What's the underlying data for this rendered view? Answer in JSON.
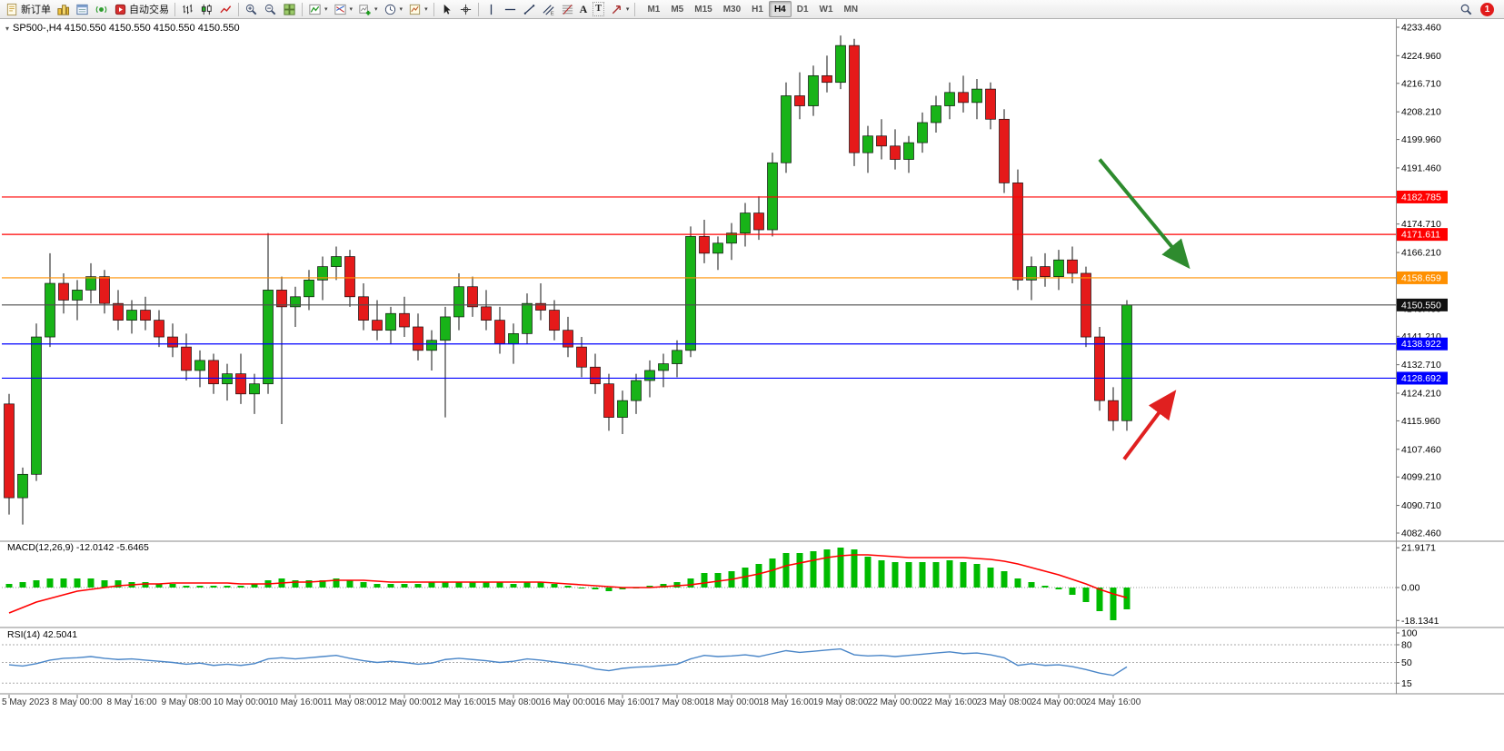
{
  "toolbar": {
    "new_order": "新订单",
    "auto_trading": "自动交易",
    "text_tool": "A",
    "label_tool": "T",
    "timeframes": [
      "M1",
      "M5",
      "M15",
      "M30",
      "H1",
      "H4",
      "D1",
      "W1",
      "MN"
    ],
    "active_timeframe": "H4",
    "notification_badge": "1",
    "icons": [
      "new-order-icon",
      "market-watch-icon",
      "data-window-icon",
      "navigator-icon",
      "auto-trading-icon",
      "bar-chart-icon",
      "candlestick-chart-icon",
      "line-chart-icon",
      "zoom-in-icon",
      "zoom-out-icon",
      "tile-windows-icon",
      "indicators-icon",
      "objects-list-icon",
      "new-chart-icon",
      "period-menu-icon",
      "template-icon",
      "cursor-icon",
      "crosshair-icon",
      "vertical-line-icon",
      "horizontal-line-icon",
      "trendline-icon",
      "channel-icon",
      "fibonacci-icon",
      "text-icon",
      "text-label-icon",
      "arrow-tools-icon",
      "search-icon",
      "notification-icon"
    ]
  },
  "chart": {
    "title": "SP500-,H4 4150.550 4150.550 4150.550 4150.550",
    "symbol": "SP500-",
    "period": "H4",
    "macd_label": "MACD(12,26,9) -12.0142 -5.6465",
    "rsi_label": "RSI(14) 42.5041"
  },
  "chart_data": {
    "type": "candlestick",
    "symbol": "SP500-",
    "timeframe": "H4",
    "price_range": [
      4082.46,
      4233.46
    ],
    "price_ticks": [
      "4233.460",
      "4224.960",
      "4216.710",
      "4208.210",
      "4199.960",
      "4191.460",
      "4174.710",
      "4166.210",
      "4157.960",
      "4149.460",
      "4141.210",
      "4132.710",
      "4124.210",
      "4115.960",
      "4107.460",
      "4099.210",
      "4090.710",
      "4082.460"
    ],
    "hlines": [
      {
        "price": 4182.785,
        "label": "4182.785",
        "color": "#ff0000"
      },
      {
        "price": 4171.611,
        "label": "4171.611",
        "color": "#ff0000"
      },
      {
        "price": 4158.659,
        "label": "4158.659",
        "color": "#ff9000"
      },
      {
        "price": 4150.55,
        "label": "4150.550",
        "color": "#4d4d4d",
        "badge": "#101010"
      },
      {
        "price": 4138.922,
        "label": "4138.922",
        "color": "#0000ff"
      },
      {
        "price": 4128.692,
        "label": "4128.692",
        "color": "#0000ff"
      }
    ],
    "candles": [
      [
        4121,
        4124,
        4088,
        4093
      ],
      [
        4093,
        4102,
        4085,
        4100
      ],
      [
        4100,
        4145,
        4098,
        4141
      ],
      [
        4141,
        4166,
        4138,
        4157
      ],
      [
        4157,
        4160,
        4148,
        4152
      ],
      [
        4152,
        4158,
        4146,
        4155
      ],
      [
        4155,
        4163,
        4151,
        4159
      ],
      [
        4159,
        4161,
        4148,
        4151
      ],
      [
        4151,
        4155,
        4143,
        4146
      ],
      [
        4146,
        4152,
        4142,
        4149
      ],
      [
        4149,
        4153,
        4143,
        4146
      ],
      [
        4146,
        4149,
        4138,
        4141
      ],
      [
        4141,
        4145,
        4135,
        4138
      ],
      [
        4138,
        4142,
        4128,
        4131
      ],
      [
        4131,
        4137,
        4126,
        4134
      ],
      [
        4134,
        4136,
        4124,
        4127
      ],
      [
        4127,
        4133,
        4122,
        4130
      ],
      [
        4130,
        4136,
        4121,
        4124
      ],
      [
        4124,
        4130,
        4118,
        4127
      ],
      [
        4127,
        4172,
        4124,
        4155
      ],
      [
        4155,
        4159,
        4115,
        4150
      ],
      [
        4150,
        4156,
        4144,
        4153
      ],
      [
        4153,
        4161,
        4149,
        4158
      ],
      [
        4158,
        4165,
        4152,
        4162
      ],
      [
        4162,
        4168,
        4158,
        4165
      ],
      [
        4165,
        4167,
        4150,
        4153
      ],
      [
        4153,
        4157,
        4143,
        4146
      ],
      [
        4146,
        4152,
        4140,
        4143
      ],
      [
        4143,
        4150,
        4139,
        4148
      ],
      [
        4148,
        4153,
        4141,
        4144
      ],
      [
        4144,
        4148,
        4134,
        4137
      ],
      [
        4137,
        4143,
        4131,
        4140
      ],
      [
        4140,
        4150,
        4117,
        4147
      ],
      [
        4147,
        4160,
        4143,
        4156
      ],
      [
        4156,
        4159,
        4147,
        4150
      ],
      [
        4150,
        4155,
        4143,
        4146
      ],
      [
        4146,
        4150,
        4136,
        4139
      ],
      [
        4139,
        4145,
        4133,
        4142
      ],
      [
        4142,
        4154,
        4139,
        4151
      ],
      [
        4151,
        4157,
        4146,
        4149
      ],
      [
        4149,
        4152,
        4140,
        4143
      ],
      [
        4143,
        4147,
        4135,
        4138
      ],
      [
        4138,
        4141,
        4129,
        4132
      ],
      [
        4132,
        4136,
        4124,
        4127
      ],
      [
        4127,
        4130,
        4113,
        4117
      ],
      [
        4117,
        4125,
        4112,
        4122
      ],
      [
        4122,
        4130,
        4118,
        4128
      ],
      [
        4128,
        4134,
        4123,
        4131
      ],
      [
        4131,
        4136,
        4126,
        4133
      ],
      [
        4133,
        4140,
        4129,
        4137
      ],
      [
        4137,
        4174,
        4135,
        4171
      ],
      [
        4171,
        4176,
        4163,
        4166
      ],
      [
        4166,
        4171,
        4161,
        4169
      ],
      [
        4169,
        4175,
        4164,
        4172
      ],
      [
        4172,
        4181,
        4168,
        4178
      ],
      [
        4178,
        4183,
        4170,
        4173
      ],
      [
        4173,
        4196,
        4171,
        4193
      ],
      [
        4193,
        4217,
        4190,
        4213
      ],
      [
        4213,
        4220,
        4206,
        4210
      ],
      [
        4210,
        4222,
        4207,
        4219
      ],
      [
        4219,
        4225,
        4214,
        4217
      ],
      [
        4217,
        4231,
        4215,
        4228
      ],
      [
        4228,
        4230,
        4192,
        4196
      ],
      [
        4196,
        4204,
        4190,
        4201
      ],
      [
        4201,
        4206,
        4194,
        4198
      ],
      [
        4198,
        4203,
        4191,
        4194
      ],
      [
        4194,
        4201,
        4190,
        4199
      ],
      [
        4199,
        4208,
        4196,
        4205
      ],
      [
        4205,
        4213,
        4202,
        4210
      ],
      [
        4210,
        4217,
        4206,
        4214
      ],
      [
        4214,
        4219,
        4208,
        4211
      ],
      [
        4211,
        4218,
        4206,
        4215
      ],
      [
        4215,
        4217,
        4203,
        4206
      ],
      [
        4206,
        4209,
        4184,
        4187
      ],
      [
        4187,
        4191,
        4155,
        4158
      ],
      [
        4158,
        4165,
        4152,
        4162
      ],
      [
        4162,
        4166,
        4156,
        4159
      ],
      [
        4159,
        4167,
        4155,
        4164
      ],
      [
        4164,
        4168,
        4157,
        4160
      ],
      [
        4160,
        4162,
        4138,
        4141
      ],
      [
        4141,
        4144,
        4119,
        4122
      ],
      [
        4122,
        4126,
        4113,
        4116
      ],
      [
        4116,
        4152,
        4113,
        4150.55
      ]
    ],
    "macd": {
      "histogram": [
        2,
        3,
        4,
        5,
        5,
        5,
        5,
        4,
        4,
        3,
        3,
        2,
        2,
        1,
        1,
        1,
        1,
        1,
        2,
        4,
        5,
        4,
        4,
        4,
        5,
        4,
        3,
        2,
        2,
        2,
        2,
        3,
        3,
        3,
        3,
        3,
        3,
        2,
        3,
        3,
        2,
        1,
        0,
        -1,
        -2,
        -1,
        0,
        1,
        2,
        3,
        5,
        8,
        8,
        9,
        11,
        13,
        16,
        19,
        19,
        20,
        21,
        22,
        21,
        17,
        15,
        14,
        14,
        14,
        14,
        15,
        14,
        13,
        11,
        9,
        5,
        3,
        1,
        -1,
        -4,
        -8,
        -13,
        -18,
        -12
      ],
      "signal": [
        -14,
        -11,
        -8,
        -6,
        -4,
        -2,
        -1,
        0,
        1,
        1.5,
        2,
        2,
        2.5,
        2.5,
        2.5,
        2.5,
        2.5,
        2,
        2,
        2,
        2.5,
        3,
        3,
        3.5,
        4,
        4,
        4,
        3.5,
        3,
        3,
        3,
        3,
        3,
        3,
        3,
        3,
        3,
        3,
        3,
        3,
        2.5,
        2,
        1.5,
        1,
        0.5,
        0,
        0,
        0,
        0.5,
        1,
        1.5,
        2.5,
        3.5,
        4.5,
        6,
        7.5,
        9.5,
        12,
        13.5,
        15,
        16.5,
        17.5,
        18,
        18,
        17.5,
        17,
        16.5,
        16.5,
        16.5,
        16.5,
        16.5,
        16,
        15.5,
        14.5,
        13,
        11,
        9,
        7,
        4.5,
        2,
        -1,
        -3.5,
        -5.6
      ],
      "axis_ticks": [
        "21.9171",
        "0.00",
        "-18.1341"
      ],
      "current_values": [
        "-12.0142",
        "-5.6465"
      ]
    },
    "rsi": {
      "values": [
        46,
        44,
        48,
        54,
        57,
        58,
        60,
        57,
        55,
        56,
        54,
        52,
        50,
        47,
        49,
        45,
        47,
        45,
        48,
        56,
        58,
        56,
        58,
        60,
        62,
        57,
        53,
        50,
        52,
        50,
        47,
        49,
        55,
        57,
        55,
        53,
        50,
        52,
        56,
        54,
        51,
        48,
        45,
        39,
        36,
        40,
        42,
        43,
        45,
        47,
        56,
        62,
        60,
        61,
        63,
        60,
        65,
        70,
        67,
        69,
        71,
        73,
        63,
        61,
        62,
        60,
        62,
        64,
        66,
        68,
        65,
        66,
        63,
        58,
        45,
        48,
        45,
        46,
        43,
        38,
        32,
        28,
        42.5
      ],
      "levels": [
        80,
        50,
        15
      ],
      "axis_ticks": [
        "100",
        "80",
        "50",
        "15"
      ],
      "current_value": "42.5041"
    },
    "time_labels": [
      {
        "label": "5 May 2023",
        "bar": 0
      },
      {
        "label": "8 May 00:00",
        "bar": 5
      },
      {
        "label": "8 May 16:00",
        "bar": 9
      },
      {
        "label": "9 May 08:00",
        "bar": 13
      },
      {
        "label": "10 May 00:00",
        "bar": 17
      },
      {
        "label": "10 May 16:00",
        "bar": 21
      },
      {
        "label": "11 May 08:00",
        "bar": 25
      },
      {
        "label": "12 May 00:00",
        "bar": 29
      },
      {
        "label": "12 May 16:00",
        "bar": 33
      },
      {
        "label": "15 May 08:00",
        "bar": 37
      },
      {
        "label": "16 May 00:00",
        "bar": 41
      },
      {
        "label": "16 May 16:00",
        "bar": 45
      },
      {
        "label": "17 May 08:00",
        "bar": 49
      },
      {
        "label": "18 May 00:00",
        "bar": 53
      },
      {
        "label": "18 May 16:00",
        "bar": 57
      },
      {
        "label": "19 May 08:00",
        "bar": 61
      },
      {
        "label": "22 May 00:00",
        "bar": 65
      },
      {
        "label": "22 May 16:00",
        "bar": 69
      },
      {
        "label": "23 May 08:00",
        "bar": 73
      },
      {
        "label": "24 May 00:00",
        "bar": 77
      },
      {
        "label": "24 May 16:00",
        "bar": 81
      }
    ],
    "annotations": [
      {
        "name": "down-trend-arrow",
        "color": "#2e8b2e",
        "from": {
          "bar": 80,
          "price": 4194
        },
        "to": {
          "bar": 86.3,
          "price": 4163
        }
      },
      {
        "name": "up-bounce-arrow",
        "color": "#e02020",
        "from": {
          "bar": 81.8,
          "price": 4104.5
        },
        "to": {
          "bar": 85.3,
          "price": 4123.5
        }
      }
    ]
  }
}
